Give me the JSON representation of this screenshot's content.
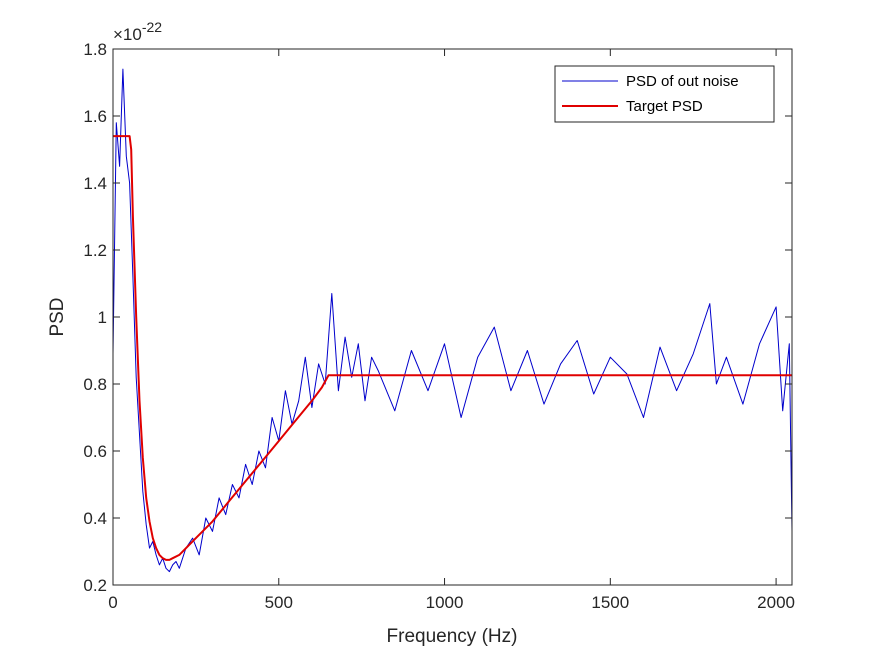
{
  "chart_data": {
    "type": "line",
    "xlabel": "Frequency (Hz)",
    "ylabel": "PSD",
    "xlim": [
      0,
      2048
    ],
    "ylim": [
      0.2,
      1.8
    ],
    "y_exponent": {
      "base": "×10",
      "power": "-22"
    },
    "x_ticks": [
      0,
      500,
      1000,
      1500,
      2000
    ],
    "x_tick_labels": [
      "0",
      "500",
      "1000",
      "1500",
      "2000"
    ],
    "y_ticks": [
      0.2,
      0.4,
      0.6,
      0.8,
      1.0,
      1.2,
      1.4,
      1.6,
      1.8
    ],
    "y_tick_labels": [
      "0.2",
      "0.4",
      "0.6",
      "0.8",
      "1",
      "1.2",
      "1.4",
      "1.6",
      "1.8"
    ],
    "grid": false,
    "legend_position": "top-right",
    "series": [
      {
        "name": "PSD of out noise",
        "color": "#0000cc",
        "x": [
          0,
          10,
          20,
          30,
          40,
          50,
          60,
          70,
          80,
          90,
          100,
          110,
          120,
          130,
          140,
          150,
          160,
          170,
          180,
          190,
          200,
          220,
          240,
          260,
          280,
          300,
          320,
          340,
          360,
          380,
          400,
          420,
          440,
          460,
          480,
          500,
          520,
          540,
          560,
          580,
          600,
          620,
          640,
          660,
          680,
          700,
          720,
          740,
          760,
          780,
          800,
          850,
          900,
          950,
          1000,
          1050,
          1100,
          1150,
          1200,
          1250,
          1300,
          1350,
          1400,
          1450,
          1500,
          1550,
          1600,
          1650,
          1700,
          1750,
          1800,
          1820,
          1850,
          1900,
          1950,
          2000,
          2020,
          2040,
          2048
        ],
        "values": [
          0.89,
          1.58,
          1.45,
          1.74,
          1.48,
          1.4,
          1.12,
          0.82,
          0.65,
          0.48,
          0.38,
          0.31,
          0.33,
          0.29,
          0.26,
          0.28,
          0.25,
          0.24,
          0.26,
          0.27,
          0.25,
          0.31,
          0.34,
          0.29,
          0.4,
          0.36,
          0.46,
          0.41,
          0.5,
          0.46,
          0.56,
          0.5,
          0.6,
          0.55,
          0.7,
          0.63,
          0.78,
          0.68,
          0.75,
          0.88,
          0.73,
          0.86,
          0.8,
          1.07,
          0.78,
          0.94,
          0.82,
          0.92,
          0.75,
          0.88,
          0.84,
          0.72,
          0.9,
          0.78,
          0.92,
          0.7,
          0.88,
          0.97,
          0.78,
          0.9,
          0.74,
          0.86,
          0.93,
          0.77,
          0.88,
          0.83,
          0.7,
          0.91,
          0.78,
          0.89,
          1.04,
          0.8,
          0.88,
          0.74,
          0.92,
          1.03,
          0.72,
          0.92,
          0.36
        ]
      },
      {
        "name": "Target PSD",
        "color": "#e00000",
        "x": [
          0,
          10,
          50,
          55,
          60,
          70,
          80,
          90,
          100,
          110,
          120,
          130,
          140,
          150,
          160,
          170,
          180,
          200,
          250,
          300,
          350,
          400,
          450,
          500,
          550,
          600,
          630,
          650,
          700,
          1000,
          1500,
          2048
        ],
        "values": [
          1.54,
          1.54,
          1.54,
          1.5,
          1.3,
          1.0,
          0.75,
          0.58,
          0.46,
          0.39,
          0.34,
          0.31,
          0.29,
          0.28,
          0.275,
          0.275,
          0.28,
          0.29,
          0.34,
          0.39,
          0.45,
          0.51,
          0.57,
          0.63,
          0.69,
          0.75,
          0.79,
          0.826,
          0.826,
          0.826,
          0.826,
          0.826
        ]
      }
    ]
  }
}
